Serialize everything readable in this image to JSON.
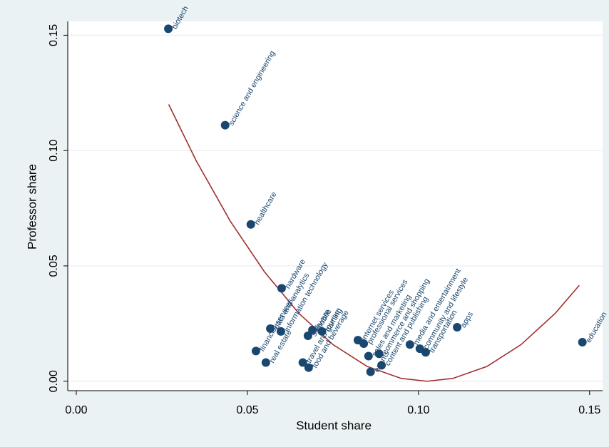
{
  "chart_data": {
    "type": "scatter",
    "x_label": "Student share",
    "y_label": "Professor share",
    "xlim": [
      -0.0025,
      0.1538
    ],
    "ylim": [
      -0.0041,
      0.156
    ],
    "xticks": [
      {
        "value": 0,
        "label": "0.00"
      },
      0.05,
      {
        "value": 0.1,
        "label": "0.10"
      },
      0.15
    ],
    "yticks": [
      {
        "value": 0,
        "label": "0.00"
      },
      0.05,
      {
        "value": 0.1,
        "label": "0.10"
      },
      0.15
    ],
    "grid": true,
    "series": [
      {
        "color": "#1a476f",
        "labels": [
          "biotech",
          "science and engineering",
          "healthcare",
          "hardware",
          "data and analytics",
          "information technology",
          "financial services",
          "real estate",
          "software",
          "mobile",
          "gaming",
          "travel and tourism",
          "food and beverage",
          "internet services",
          "professional services",
          "sales and marketing",
          "events",
          "commerce and shopping",
          "content and publishing",
          "media and entertainment",
          "community and lifestyle",
          "transportation",
          "apps",
          "education"
        ],
        "x": [
          0.0269,
          0.0435,
          0.051,
          0.06,
          0.0567,
          0.0598,
          0.0525,
          0.0554,
          0.0677,
          0.069,
          0.0718,
          0.0662,
          0.0679,
          0.0823,
          0.084,
          0.0854,
          0.086,
          0.0885,
          0.0892,
          0.0975,
          0.1004,
          0.1021,
          0.1113,
          0.1479
        ],
        "values": [
          0.1528,
          0.111,
          0.068,
          0.0403,
          0.0228,
          0.0216,
          0.0131,
          0.0081,
          0.0197,
          0.0222,
          0.0216,
          0.0081,
          0.0059,
          0.0178,
          0.0163,
          0.0109,
          0.0041,
          0.0119,
          0.0069,
          0.0159,
          0.0141,
          0.0125,
          0.0234,
          0.0169
        ]
      }
    ],
    "fit": {
      "color": "#a0302e",
      "x": [
        0.027,
        0.035,
        0.045,
        0.055,
        0.065,
        0.075,
        0.085,
        0.095,
        0.1025,
        0.11,
        0.12,
        0.13,
        0.14,
        0.147
      ],
      "values": [
        0.12,
        0.0957,
        0.0694,
        0.0474,
        0.0295,
        0.0159,
        0.0064,
        0.0012,
        0,
        0.0012,
        0.0064,
        0.0159,
        0.0295,
        0.0416
      ]
    }
  }
}
